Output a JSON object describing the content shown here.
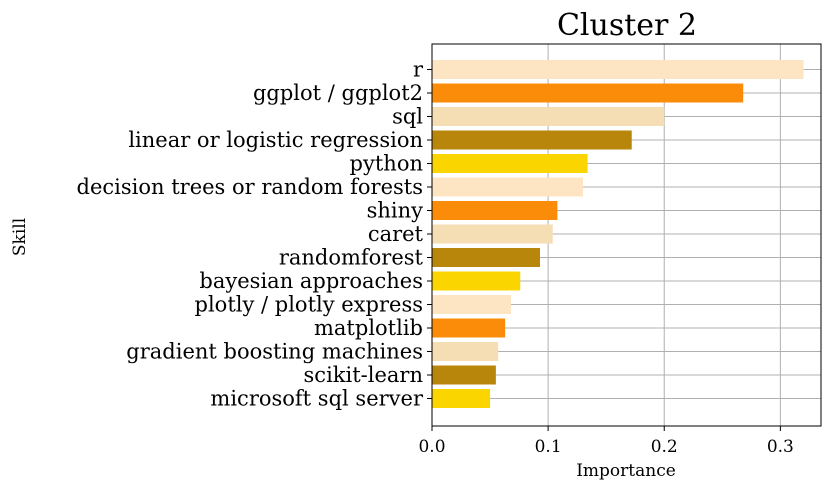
{
  "chart_data": {
    "type": "bar",
    "orientation": "horizontal",
    "title": "Cluster 2",
    "xlabel": "Importance",
    "ylabel": "Skill",
    "xlim": [
      0,
      0.335
    ],
    "xticks": [
      0.0,
      0.1,
      0.2,
      0.3
    ],
    "xtick_labels": [
      "0.0",
      "0.1",
      "0.2",
      "0.3"
    ],
    "grid": true,
    "categories": [
      "r",
      "ggplot / ggplot2",
      "sql",
      "linear or logistic regression",
      "python",
      "decision trees or random forests",
      "shiny",
      "caret",
      "randomforest",
      "bayesian approaches",
      "plotly / plotly express",
      "matplotlib",
      "gradient boosting machines",
      "scikit-learn",
      "microsoft sql server"
    ],
    "values": [
      0.32,
      0.268,
      0.2,
      0.172,
      0.134,
      0.13,
      0.108,
      0.104,
      0.093,
      0.076,
      0.068,
      0.063,
      0.057,
      0.055,
      0.05
    ],
    "colors": [
      "#fde4c2",
      "#fb8c0a",
      "#f6deb4",
      "#b8860b",
      "#fbd500",
      "#fde4c2",
      "#fb8c0a",
      "#f6deb4",
      "#b8860b",
      "#fbd500",
      "#fde4c2",
      "#fb8c0a",
      "#f6deb4",
      "#b8860b",
      "#fbd500"
    ]
  }
}
